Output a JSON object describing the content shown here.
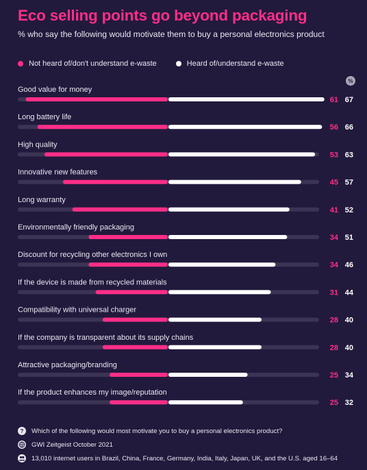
{
  "header": {
    "title": "Eco selling points go beyond packaging",
    "subtitle": "% who say the following would motivate them to buy a personal electronics product"
  },
  "legend": {
    "not_heard": "Not heard of/don't understand e-waste",
    "heard": "Heard of/understand e-waste",
    "unit_badge": "%"
  },
  "colors": {
    "background": "#221a3c",
    "pink": "#ff2e88",
    "white": "#ffffff",
    "track": "#3b3454"
  },
  "chart_data": {
    "type": "bar",
    "orientation": "horizontal-diverging",
    "xlim": [
      0,
      100
    ],
    "categories": [
      "Good value for money",
      "Long battery life",
      "High quality",
      "Innovative new features",
      "Long warranty",
      "Environmentally friendly packaging",
      "Discount for recycling other electronics I own",
      "If the device is made from recycled materials",
      "Compatibility with universal charger",
      "If the company is transparent about its supply chains",
      "Attractive packaging/branding",
      "If the product enhances my image/reputation"
    ],
    "series": [
      {
        "name": "Not heard of/don't understand e-waste",
        "color": "#ff2e88",
        "values": [
          61,
          56,
          53,
          45,
          41,
          34,
          34,
          31,
          28,
          28,
          25,
          25
        ]
      },
      {
        "name": "Heard of/understand e-waste",
        "color": "#ffffff",
        "values": [
          67,
          66,
          63,
          57,
          52,
          51,
          46,
          44,
          40,
          40,
          34,
          32
        ]
      }
    ]
  },
  "footer": {
    "question": "Which of the following would most motivate you to buy a personal electronics product?",
    "source": "GWI Zeitgeist October 2021",
    "sample": "13,010 internet users in Brazil, China, France, Germany, India, Italy, Japan, UK, and the U.S. aged 16–64",
    "question_icon": "question-icon",
    "source_icon": "globe-icon",
    "sample_icon": "people-icon"
  }
}
